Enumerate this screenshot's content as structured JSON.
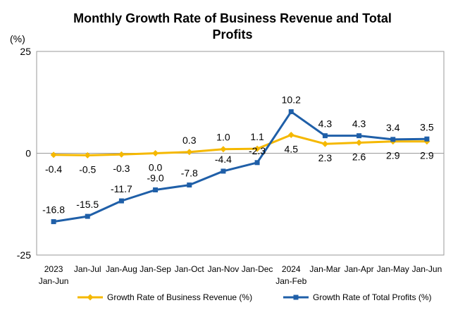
{
  "chart_data": {
    "type": "line",
    "title_line1": "Monthly Growth Rate of Business Revenue and Total",
    "title_line2": "Profits",
    "unit_label": "(%)",
    "ylim": [
      -25,
      25
    ],
    "yticks": [
      "25",
      "0",
      "-25"
    ],
    "ytick_values": [
      25,
      0,
      -25
    ],
    "categories": [
      [
        "2023",
        "Jan-Jun"
      ],
      [
        "Jan-Jul"
      ],
      [
        "Jan-Aug"
      ],
      [
        "Jan-Sep"
      ],
      [
        "Jan-Oct"
      ],
      [
        "Jan-Nov"
      ],
      [
        "Jan-Dec"
      ],
      [
        "2024",
        "Jan-Feb"
      ],
      [
        "Jan-Mar"
      ],
      [
        "Jan-Apr"
      ],
      [
        "Jan-May"
      ],
      [
        "Jan-Jun"
      ]
    ],
    "series": [
      {
        "name": "Growth Rate of Business Revenue (%)",
        "color": "#F5B800",
        "marker": "diamond",
        "values": [
          -0.4,
          -0.5,
          -0.3,
          0.0,
          0.3,
          1.0,
          1.1,
          4.5,
          2.3,
          2.6,
          2.9,
          2.9
        ],
        "labels": [
          "-0.4",
          "-0.5",
          "-0.3",
          "0.0",
          "0.3",
          "1.0",
          "1.1",
          "4.5",
          "2.3",
          "2.6",
          "2.9",
          "2.9"
        ],
        "label_pos": [
          "below",
          "below",
          "below",
          "below",
          "above",
          "above",
          "above",
          "below",
          "below",
          "below",
          "below",
          "below"
        ]
      },
      {
        "name": "Growth Rate of Total Profits (%)",
        "color": "#1F5FA8",
        "marker": "square",
        "values": [
          -16.8,
          -15.5,
          -11.7,
          -9.0,
          -7.8,
          -4.4,
          -2.3,
          10.2,
          4.3,
          4.3,
          3.4,
          3.5
        ],
        "labels": [
          "-16.8",
          "-15.5",
          "-11.7",
          "-9.0",
          "-7.8",
          "-4.4",
          "-2.3",
          "10.2",
          "4.3",
          "4.3",
          "3.4",
          "3.5"
        ],
        "label_pos": [
          "above",
          "above",
          "above",
          "above",
          "above",
          "above",
          "above",
          "above",
          "above",
          "above",
          "above",
          "above"
        ]
      }
    ],
    "legend": [
      {
        "text": "Growth Rate of Business Revenue (%)",
        "color": "#F5B800",
        "marker": "diamond"
      },
      {
        "text": "Growth Rate of Total Profits (%)",
        "color": "#1F5FA8",
        "marker": "square"
      }
    ],
    "grid": false,
    "legend_position": "bottom"
  }
}
